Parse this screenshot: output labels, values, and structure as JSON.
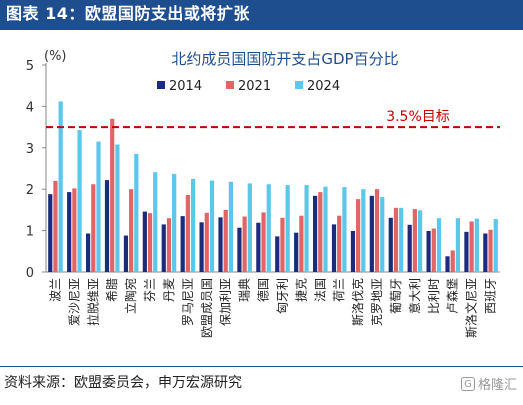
{
  "header": {
    "title": "图表 14：欧盟国防支出或将扩张"
  },
  "footer": {
    "source": "资料来源：欧盟委员会，申万宏源研究"
  },
  "watermark": {
    "text": "格隆汇",
    "icon": "logo-icon"
  },
  "chart_data": {
    "type": "bar",
    "title": "北约成员国国防开支占GDP百分比",
    "ylabel": "(%)",
    "xlabel": "",
    "ylim": [
      0,
      5
    ],
    "yticks": [
      0,
      1,
      2,
      3,
      4,
      5
    ],
    "grid": false,
    "legend_position": "top-center",
    "categories": [
      "波兰",
      "爱沙尼亚",
      "拉脱维亚",
      "希腊",
      "立陶宛",
      "芬兰",
      "丹麦",
      "罗马尼亚",
      "欧盟成员国",
      "保加利亚",
      "瑞典",
      "德国",
      "匈牙利",
      "捷克",
      "法国",
      "荷兰",
      "斯洛伐克",
      "克罗地亚",
      "葡萄牙",
      "意大利",
      "比利时",
      "卢森堡",
      "斯洛文尼亚",
      "西班牙"
    ],
    "series": [
      {
        "name": "2014",
        "color": "#1c2c7c",
        "values": [
          1.88,
          1.93,
          0.93,
          2.22,
          0.88,
          1.46,
          1.15,
          1.35,
          1.2,
          1.32,
          1.07,
          1.19,
          0.86,
          0.95,
          1.84,
          1.15,
          0.99,
          1.84,
          1.31,
          1.14,
          0.99,
          0.38,
          0.97,
          0.93
        ]
      },
      {
        "name": "2021",
        "color": "#e06666",
        "values": [
          2.2,
          2.02,
          2.12,
          3.7,
          2.0,
          1.42,
          1.3,
          1.86,
          1.43,
          1.5,
          1.34,
          1.44,
          1.31,
          1.36,
          1.93,
          1.36,
          1.76,
          2.0,
          1.55,
          1.52,
          1.05,
          0.52,
          1.22,
          1.02
        ]
      },
      {
        "name": "2024",
        "color": "#5bc8ea",
        "values": [
          4.12,
          3.43,
          3.15,
          3.08,
          2.85,
          2.41,
          2.37,
          2.25,
          2.21,
          2.18,
          2.14,
          2.12,
          2.1,
          2.1,
          2.06,
          2.05,
          2.0,
          1.81,
          1.55,
          1.49,
          1.3,
          1.3,
          1.29,
          1.28
        ]
      }
    ],
    "reference_line": {
      "value": 3.5,
      "label": "3.5%目标",
      "color": "#c00000"
    }
  }
}
